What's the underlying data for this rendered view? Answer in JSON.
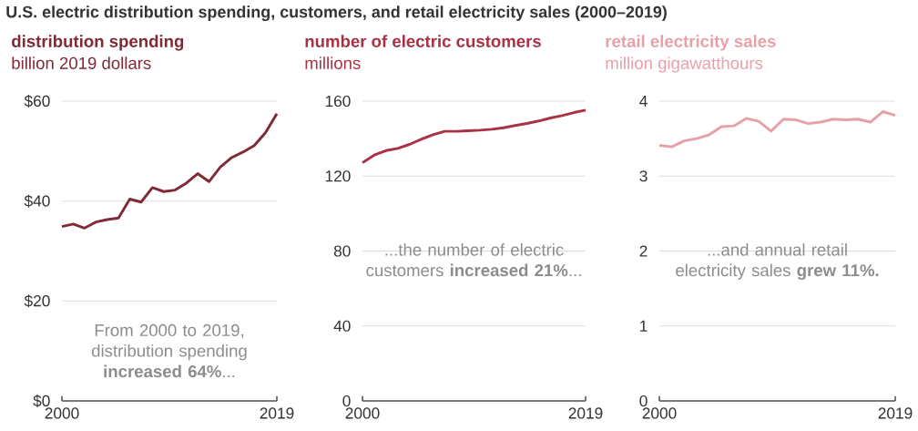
{
  "chart_data": [
    {
      "type": "line",
      "title": "U.S. electric distribution spending, customers, and retail electricity sales (2000–2019)",
      "subtitle": "distribution spending",
      "ylabel": "billion 2019 dollars",
      "x": [
        2000,
        2001,
        2002,
        2003,
        2004,
        2005,
        2006,
        2007,
        2008,
        2009,
        2010,
        2011,
        2012,
        2013,
        2014,
        2015,
        2016,
        2017,
        2018,
        2019
      ],
      "series": [
        {
          "color": "#7f2a37",
          "values": [
            34.9,
            35.4,
            34.6,
            35.8,
            36.3,
            36.6,
            40.4,
            39.8,
            42.7,
            41.9,
            42.2,
            43.6,
            45.5,
            43.9,
            46.8,
            48.7,
            49.8,
            51.1,
            53.7,
            57.5
          ]
        }
      ],
      "xlim": [
        2000,
        2019
      ],
      "xticks": [
        2000,
        2019
      ],
      "ylim": [
        0,
        60
      ],
      "yticks": [
        {
          "value": 0,
          "label": "$0"
        },
        {
          "value": 20,
          "label": "$20"
        },
        {
          "value": 40,
          "label": "$40"
        },
        {
          "value": 60,
          "label": "$60"
        }
      ],
      "grid": "y",
      "annotations": [
        "From 2000 to 2019, distribution spending **increased 64%**..."
      ]
    },
    {
      "type": "line",
      "subtitle": "number of electric customers",
      "ylabel": "millions",
      "x": [
        2000,
        2001,
        2002,
        2003,
        2004,
        2005,
        2006,
        2007,
        2008,
        2009,
        2010,
        2011,
        2012,
        2013,
        2014,
        2015,
        2016,
        2017,
        2018,
        2019
      ],
      "series": [
        {
          "color": "#a83244",
          "values": [
            127.1,
            131.2,
            133.6,
            134.8,
            136.9,
            139.6,
            142.1,
            143.9,
            143.9,
            144.2,
            144.5,
            145.0,
            145.8,
            147.0,
            148.1,
            149.4,
            151.0,
            152.3,
            153.9,
            155.2
          ]
        }
      ],
      "xlim": [
        2000,
        2019
      ],
      "xticks": [
        2000,
        2019
      ],
      "ylim": [
        0,
        160
      ],
      "yticks": [
        0,
        40,
        80,
        120,
        160
      ],
      "grid": "y",
      "annotations": [
        "...the number of electric customers **increased 21%**..."
      ]
    },
    {
      "type": "line",
      "subtitle": "retail electricity sales",
      "ylabel": "million gigawatthours",
      "x": [
        2000,
        2001,
        2002,
        2003,
        2004,
        2005,
        2006,
        2007,
        2008,
        2009,
        2010,
        2011,
        2012,
        2013,
        2014,
        2015,
        2016,
        2017,
        2018,
        2019
      ],
      "series": [
        {
          "color": "#e8a0a8",
          "values": [
            3.41,
            3.39,
            3.47,
            3.5,
            3.55,
            3.66,
            3.67,
            3.77,
            3.73,
            3.6,
            3.76,
            3.75,
            3.7,
            3.72,
            3.76,
            3.75,
            3.76,
            3.72,
            3.86,
            3.81
          ]
        }
      ],
      "xlim": [
        2000,
        2019
      ],
      "xticks": [
        2000,
        2019
      ],
      "ylim": [
        0,
        4
      ],
      "yticks": [
        0,
        1,
        2,
        3,
        4
      ],
      "grid": "y",
      "annotations": [
        "...and annual retail electricity sales **grew 11%.**"
      ]
    }
  ]
}
